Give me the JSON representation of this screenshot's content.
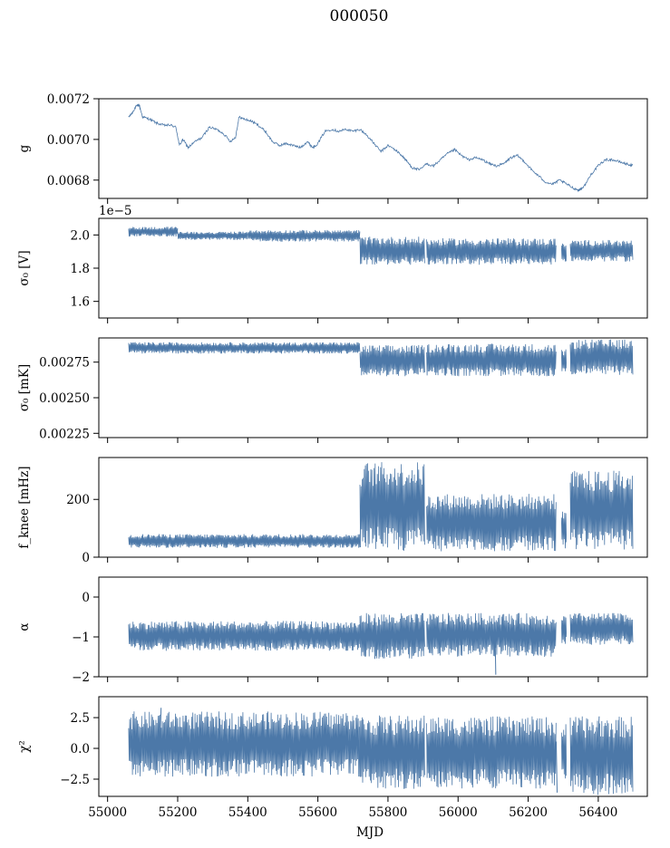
{
  "figure": {
    "title": "000050",
    "xlabel": "MJD",
    "x_ticks": [
      55000,
      55200,
      55400,
      55600,
      55800,
      56000,
      56200,
      56400
    ],
    "xlim": [
      54975,
      56540
    ],
    "line_color": "#4c78a8"
  },
  "chart_data": [
    {
      "type": "line",
      "ylabel": "g",
      "ylim": [
        0.00671,
        0.0072
      ],
      "y_ticks": [
        0.0068,
        0.007,
        0.0072
      ],
      "y_tick_labels": [
        "0.0068",
        "0.0070",
        "0.0072"
      ],
      "offset_text": "",
      "series": [
        {
          "mode": "trace",
          "points": [
            [
              55060,
              0.00711
            ],
            [
              55070,
              0.00713
            ],
            [
              55080,
              0.00716
            ],
            [
              55090,
              0.00717
            ],
            [
              55100,
              0.00711
            ],
            [
              55120,
              0.0071
            ],
            [
              55140,
              0.00708
            ],
            [
              55160,
              0.00707
            ],
            [
              55180,
              0.00707
            ],
            [
              55195,
              0.00706
            ],
            [
              55205,
              0.00697
            ],
            [
              55215,
              0.007
            ],
            [
              55230,
              0.00696
            ],
            [
              55250,
              0.00699
            ],
            [
              55270,
              0.00701
            ],
            [
              55290,
              0.00706
            ],
            [
              55310,
              0.00705
            ],
            [
              55330,
              0.00703
            ],
            [
              55350,
              0.00699
            ],
            [
              55365,
              0.00701
            ],
            [
              55375,
              0.00711
            ],
            [
              55390,
              0.0071
            ],
            [
              55410,
              0.00709
            ],
            [
              55430,
              0.00707
            ],
            [
              55450,
              0.00704
            ],
            [
              55470,
              0.00699
            ],
            [
              55490,
              0.00697
            ],
            [
              55510,
              0.00698
            ],
            [
              55530,
              0.00697
            ],
            [
              55550,
              0.00696
            ],
            [
              55570,
              0.00699
            ],
            [
              55585,
              0.00696
            ],
            [
              55600,
              0.00698
            ],
            [
              55620,
              0.00704
            ],
            [
              55640,
              0.00705
            ],
            [
              55660,
              0.00704
            ],
            [
              55680,
              0.00705
            ],
            [
              55700,
              0.00704
            ],
            [
              55720,
              0.00705
            ],
            [
              55740,
              0.00702
            ],
            [
              55760,
              0.00698
            ],
            [
              55780,
              0.00694
            ],
            [
              55800,
              0.00697
            ],
            [
              55820,
              0.00695
            ],
            [
              55840,
              0.00692
            ],
            [
              55855,
              0.00689
            ],
            [
              55870,
              0.00686
            ],
            [
              55890,
              0.00685
            ],
            [
              55910,
              0.00688
            ],
            [
              55930,
              0.00687
            ],
            [
              55950,
              0.0069
            ],
            [
              55970,
              0.00693
            ],
            [
              55990,
              0.00695
            ],
            [
              56010,
              0.00692
            ],
            [
              56030,
              0.0069
            ],
            [
              56050,
              0.00691
            ],
            [
              56070,
              0.0069
            ],
            [
              56090,
              0.00688
            ],
            [
              56110,
              0.00687
            ],
            [
              56130,
              0.00688
            ],
            [
              56150,
              0.00691
            ],
            [
              56170,
              0.00692
            ],
            [
              56190,
              0.00689
            ],
            [
              56210,
              0.00685
            ],
            [
              56230,
              0.00682
            ],
            [
              56250,
              0.00679
            ],
            [
              56270,
              0.00678
            ],
            [
              56290,
              0.0068
            ],
            [
              56310,
              0.00678
            ],
            [
              56330,
              0.00676
            ],
            [
              56345,
              0.00675
            ],
            [
              56360,
              0.00677
            ],
            [
              56380,
              0.00683
            ],
            [
              56400,
              0.00687
            ],
            [
              56420,
              0.0069
            ],
            [
              56440,
              0.0069
            ],
            [
              56460,
              0.00689
            ],
            [
              56480,
              0.00688
            ],
            [
              56500,
              0.00687
            ]
          ],
          "noise": 6e-06
        }
      ]
    },
    {
      "type": "line",
      "ylabel": "σ₀ [V]",
      "ylim": [
        1.5,
        2.1
      ],
      "y_ticks": [
        1.6,
        1.8,
        2.0
      ],
      "y_tick_labels": [
        "1.6",
        "1.8",
        "2.0"
      ],
      "offset_text": "1e−5",
      "series": [
        {
          "mode": "band",
          "segments": [
            {
              "x": [
                55060,
                55200
              ],
              "lo": 1.99,
              "hi": 2.05
            },
            {
              "x": [
                55200,
                55400
              ],
              "lo": 1.97,
              "hi": 2.02
            },
            {
              "x": [
                55400,
                55720
              ],
              "lo": 1.96,
              "hi": 2.03
            },
            {
              "x": [
                55720,
                55905
              ],
              "lo": 1.82,
              "hi": 1.99
            },
            {
              "x": [
                55910,
                56280
              ],
              "lo": 1.82,
              "hi": 1.98
            },
            {
              "x": [
                56295,
                56310
              ],
              "lo": 1.83,
              "hi": 1.95
            },
            {
              "x": [
                56320,
                56500
              ],
              "lo": 1.84,
              "hi": 1.97
            }
          ]
        }
      ]
    },
    {
      "type": "line",
      "ylabel": "σ₀ [mK]",
      "ylim": [
        0.00222,
        0.00292
      ],
      "y_ticks": [
        0.00225,
        0.0025,
        0.00275
      ],
      "y_tick_labels": [
        "0.00225",
        "0.00250",
        "0.00275"
      ],
      "offset_text": "",
      "series": [
        {
          "mode": "band",
          "segments": [
            {
              "x": [
                55060,
                55720
              ],
              "lo": 0.00281,
              "hi": 0.00289
            },
            {
              "x": [
                55720,
                55905
              ],
              "lo": 0.00265,
              "hi": 0.00287
            },
            {
              "x": [
                55910,
                56280
              ],
              "lo": 0.00265,
              "hi": 0.00288
            },
            {
              "x": [
                56295,
                56310
              ],
              "lo": 0.00268,
              "hi": 0.00284
            },
            {
              "x": [
                56320,
                56500
              ],
              "lo": 0.00266,
              "hi": 0.00291
            }
          ]
        }
      ]
    },
    {
      "type": "line",
      "ylabel": "f_knee [mHz]",
      "ylim": [
        0,
        345
      ],
      "y_ticks": [
        0,
        200
      ],
      "y_tick_labels": [
        "0",
        "200"
      ],
      "offset_text": "",
      "series": [
        {
          "mode": "band",
          "segments": [
            {
              "x": [
                55060,
                55720
              ],
              "lo": 32,
              "hi": 80
            },
            {
              "x": [
                55720,
                55905
              ],
              "lo": 20,
              "hi": 330
            },
            {
              "x": [
                55910,
                56280
              ],
              "lo": 20,
              "hi": 220
            },
            {
              "x": [
                56295,
                56310
              ],
              "lo": 30,
              "hi": 160
            },
            {
              "x": [
                56320,
                56500
              ],
              "lo": 25,
              "hi": 300
            }
          ]
        }
      ]
    },
    {
      "type": "line",
      "ylabel": "α",
      "ylim": [
        -2,
        0.5
      ],
      "y_ticks": [
        -2,
        -1,
        0
      ],
      "y_tick_labels": [
        "−2",
        "−1",
        "0"
      ],
      "offset_text": "",
      "series": [
        {
          "mode": "band",
          "segments": [
            {
              "x": [
                55060,
                55720
              ],
              "lo": -1.35,
              "hi": -0.6
            },
            {
              "x": [
                55720,
                55905
              ],
              "lo": -1.55,
              "hi": -0.4
            },
            {
              "x": [
                55910,
                56280
              ],
              "lo": -1.5,
              "hi": -0.4
            },
            {
              "x": [
                56295,
                56310
              ],
              "lo": -1.2,
              "hi": -0.45
            },
            {
              "x": [
                56320,
                56500
              ],
              "lo": -1.2,
              "hi": -0.4
            }
          ],
          "spikes": [
            [
              56105,
              -1.95
            ],
            [
              55760,
              -1.55
            ],
            [
              56060,
              -1.45
            ]
          ]
        }
      ]
    },
    {
      "type": "line",
      "ylabel": "χ²",
      "ylim": [
        -3.9,
        4.2
      ],
      "y_ticks": [
        -2.5,
        0,
        2.5
      ],
      "y_tick_labels": [
        "−2.5",
        "0.0",
        "2.5"
      ],
      "offset_text": "",
      "series": [
        {
          "mode": "band",
          "segments": [
            {
              "x": [
                55060,
                55720
              ],
              "lo": -2.3,
              "hi": 3.0
            },
            {
              "x": [
                55720,
                55905
              ],
              "lo": -3.3,
              "hi": 2.7
            },
            {
              "x": [
                55910,
                56280
              ],
              "lo": -3.3,
              "hi": 2.6
            },
            {
              "x": [
                56295,
                56310
              ],
              "lo": -2.5,
              "hi": 2.0
            },
            {
              "x": [
                56320,
                56500
              ],
              "lo": -3.8,
              "hi": 2.6
            }
          ],
          "spikes": [
            [
              55150,
              3.3
            ],
            [
              56400,
              2.6
            ],
            [
              56280,
              -3.6
            ]
          ]
        }
      ]
    }
  ]
}
